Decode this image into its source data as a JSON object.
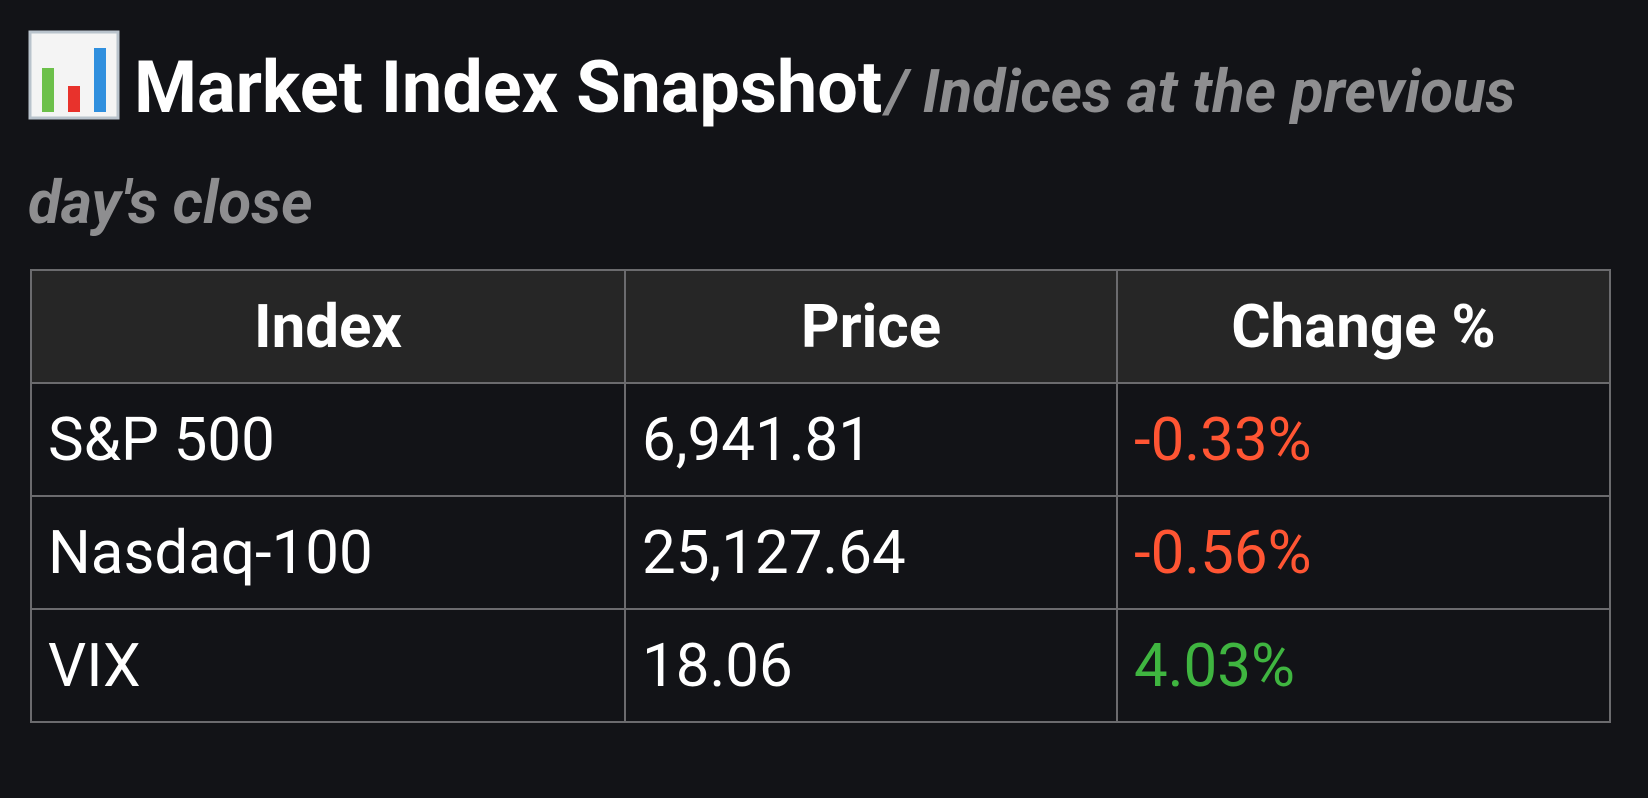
{
  "header": {
    "title": "Market Index Snapshot",
    "subtitle": "/ Indices at the previous day's close"
  },
  "table": {
    "columns": [
      "Index",
      "Price",
      "Change %"
    ],
    "rows": [
      [
        "S&P 500",
        "6,941.81",
        "-0.33%"
      ],
      [
        "Nasdaq-100",
        "25,127.64",
        "-0.56%"
      ],
      [
        "VIX",
        "18.06",
        "4.03%"
      ]
    ]
  }
}
